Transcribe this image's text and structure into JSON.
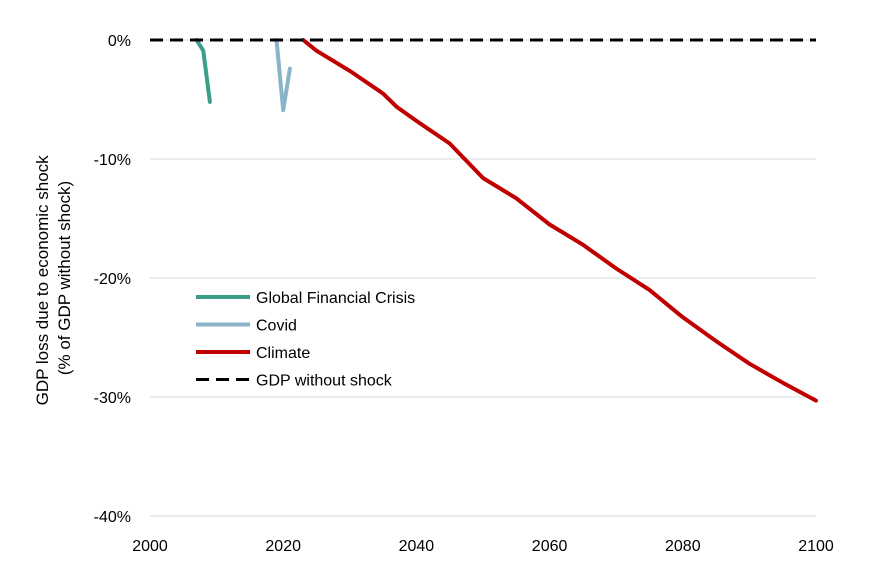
{
  "chart_data": {
    "type": "line",
    "title": "",
    "ylabel_lines": [
      "GDP loss due to economic shock",
      "(% of GDP without shock)"
    ],
    "xlabel": "",
    "xlim": [
      2000,
      2100
    ],
    "ylim": [
      -40,
      0
    ],
    "x_ticks": [
      {
        "value": 2000,
        "label": "2000"
      },
      {
        "value": 2020,
        "label": "2020"
      },
      {
        "value": 2040,
        "label": "2040"
      },
      {
        "value": 2060,
        "label": "2060"
      },
      {
        "value": 2080,
        "label": "2080"
      },
      {
        "value": 2100,
        "label": "2100"
      }
    ],
    "y_ticks": [
      {
        "value": 0,
        "label": "0%"
      },
      {
        "value": -10,
        "label": "-10%"
      },
      {
        "value": -20,
        "label": "-20%"
      },
      {
        "value": -30,
        "label": "-30%"
      },
      {
        "value": -40,
        "label": "-40%"
      }
    ],
    "grid": "horizontal",
    "legend_position": "lower-left",
    "series": [
      {
        "name": "Global Financial Crisis",
        "color": "#3a9e88",
        "style": "solid",
        "points": [
          [
            2007,
            0
          ],
          [
            2008,
            -0.9
          ],
          [
            2009,
            -5.2
          ]
        ]
      },
      {
        "name": "Covid",
        "color": "#8ab4c8",
        "style": "solid",
        "points": [
          [
            2019,
            0
          ],
          [
            2020,
            -5.9
          ],
          [
            2021,
            -2.4
          ]
        ]
      },
      {
        "name": "Climate",
        "color": "#c00000",
        "style": "solid",
        "points": [
          [
            2023,
            0
          ],
          [
            2025,
            -0.9
          ],
          [
            2030,
            -2.6
          ],
          [
            2035,
            -4.5
          ],
          [
            2037,
            -5.6
          ],
          [
            2040,
            -6.8
          ],
          [
            2045,
            -8.7
          ],
          [
            2050,
            -11.6
          ],
          [
            2055,
            -13.3
          ],
          [
            2060,
            -15.5
          ],
          [
            2065,
            -17.2
          ],
          [
            2070,
            -19.2
          ],
          [
            2075,
            -21.0
          ],
          [
            2080,
            -23.3
          ],
          [
            2085,
            -25.3
          ],
          [
            2090,
            -27.2
          ],
          [
            2095,
            -28.8
          ],
          [
            2100,
            -30.3
          ]
        ]
      },
      {
        "name": "GDP without shock",
        "color": "#000000",
        "style": "dashed",
        "points": [
          [
            2000,
            0
          ],
          [
            2100,
            0
          ]
        ]
      }
    ]
  }
}
